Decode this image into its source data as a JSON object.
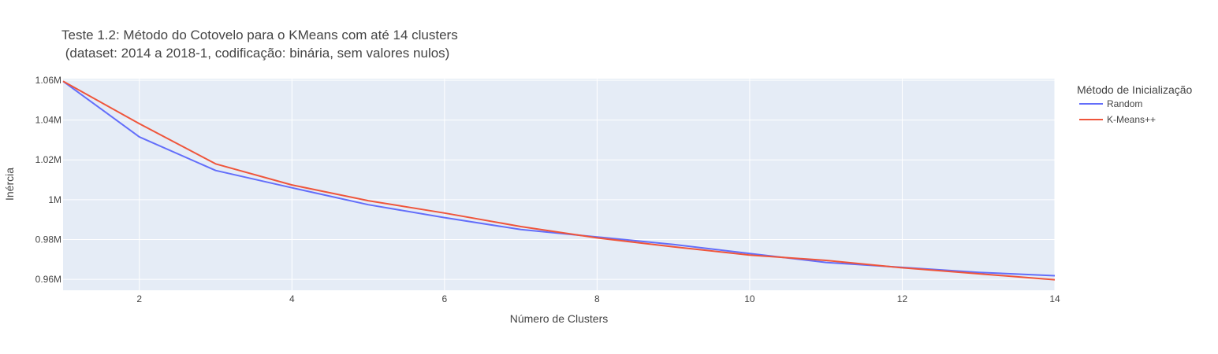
{
  "chart_data": {
    "type": "line",
    "title_lines": [
      "Teste 1.2: Método do Cotovelo para o KMeans com até 14 clusters",
      " (dataset: 2014 a 2018-1, codificação: binária, sem valores nulos)"
    ],
    "xlabel": "Número de Clusters",
    "ylabel": "Inércia",
    "xlim": [
      1,
      14
    ],
    "ylim": [
      954500,
      1060800
    ],
    "x_ticks": [
      2,
      4,
      6,
      8,
      10,
      12,
      14
    ],
    "x_tick_labels": [
      "2",
      "4",
      "6",
      "8",
      "10",
      "12",
      "14"
    ],
    "y_ticks": [
      960000,
      980000,
      1000000,
      1020000,
      1040000,
      1060000
    ],
    "y_tick_labels": [
      "0.96M",
      "0.98M",
      "1M",
      "1.02M",
      "1.04M",
      "1.06M"
    ],
    "grid": true,
    "legend_title": "Método de Inicialização",
    "legend_position": "right",
    "x": [
      1,
      2,
      3,
      4,
      5,
      6,
      7,
      8,
      9,
      10,
      11,
      12,
      13,
      14
    ],
    "series": [
      {
        "name": "Random",
        "color": "#636efa",
        "values": [
          1059500,
          1031500,
          1014700,
          1006000,
          997500,
          991000,
          985000,
          981300,
          977500,
          973000,
          968500,
          966000,
          963500,
          961800
        ]
      },
      {
        "name": "K-Means++",
        "color": "#ef553b",
        "values": [
          1059500,
          1038200,
          1018000,
          1007400,
          999500,
          993300,
          986500,
          980800,
          976300,
          972200,
          969500,
          965800,
          962800,
          959800
        ]
      }
    ],
    "plot_bg": "#e5ecf6",
    "grid_color": "#ffffff"
  }
}
